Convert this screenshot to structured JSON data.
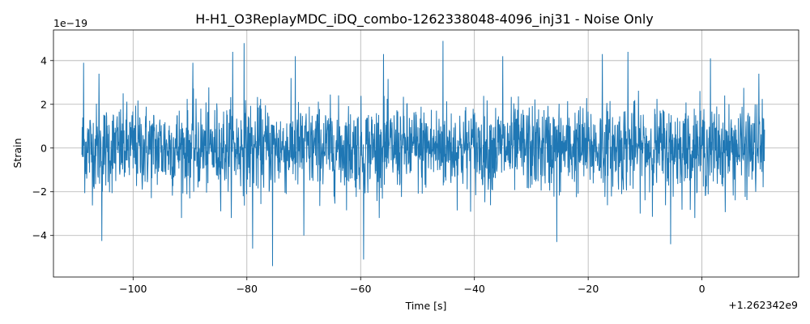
{
  "chart_data": {
    "type": "line",
    "title": "H-H1_O3ReplayMDC_iDQ_combo-1262338048-4096_inj31 - Noise Only",
    "xlabel": "Time [s]",
    "ylabel": "Strain",
    "x_offset_label": "+1.262342e9",
    "y_scale_label": "1e−19",
    "xlim": [
      -114,
      17
    ],
    "ylim": [
      -5.9,
      5.4
    ],
    "grid": true,
    "x_ticks": [
      -100,
      -80,
      -60,
      -40,
      -20,
      0
    ],
    "x_tick_labels": [
      "−100",
      "−80",
      "−60",
      "−40",
      "−20",
      "0"
    ],
    "y_ticks": [
      -4,
      -2,
      0,
      2,
      4
    ],
    "y_tick_labels": [
      "−4",
      "−2",
      "0",
      "2",
      "4"
    ],
    "series": [
      {
        "color": "#1f77b4",
        "x_range": [
          -109,
          11
        ],
        "sample_count": 2400,
        "envelope_sigma": 1.0,
        "peaks": [
          {
            "x": -108.7,
            "y": 3.9
          },
          {
            "x": -106.0,
            "y": 3.4
          },
          {
            "x": -105.5,
            "y": -4.25
          },
          {
            "x": -82.5,
            "y": 4.4
          },
          {
            "x": -80.5,
            "y": 4.8
          },
          {
            "x": -79.0,
            "y": -4.6
          },
          {
            "x": -75.5,
            "y": -5.4
          },
          {
            "x": -71.5,
            "y": 4.2
          },
          {
            "x": -59.5,
            "y": -5.1
          },
          {
            "x": -45.5,
            "y": 4.9
          },
          {
            "x": -56.0,
            "y": 4.3
          },
          {
            "x": -25.5,
            "y": -4.3
          },
          {
            "x": -17.5,
            "y": 4.3
          },
          {
            "x": -5.5,
            "y": -4.4
          },
          {
            "x": -13.0,
            "y": 4.4
          },
          {
            "x": 1.5,
            "y": 4.1
          },
          {
            "x": 10.0,
            "y": 3.4
          },
          {
            "x": -89.5,
            "y": 3.9
          },
          {
            "x": -70.0,
            "y": -4.0
          },
          {
            "x": -35.0,
            "y": 4.2
          }
        ]
      }
    ]
  }
}
